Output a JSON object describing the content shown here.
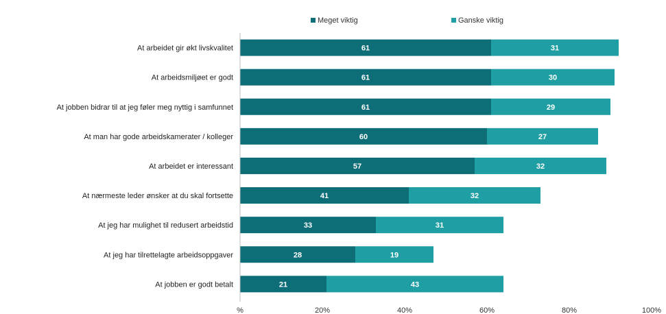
{
  "chart_data": {
    "type": "bar",
    "orientation": "horizontal",
    "stacked": true,
    "categories": [
      "At arbeidet gir økt livskvalitet",
      "At arbeidsmiljøet er godt",
      "At jobben bidrar til at jeg føler meg nyttig i samfunnet",
      "At man har gode arbeidskamerater / kolleger",
      "At arbeidet er interessant",
      "At nærmeste leder ønsker at du skal fortsette",
      "At jeg har mulighet til redusert arbeidstid",
      "At jeg har tilrettelagte arbeidsoppgaver",
      "At jobben er godt betalt"
    ],
    "series": [
      {
        "name": "Meget viktig",
        "color": "#0e6e78",
        "values": [
          61,
          61,
          61,
          60,
          57,
          41,
          33,
          28,
          21
        ]
      },
      {
        "name": "Ganske viktig",
        "color": "#1f9fa3",
        "values": [
          31,
          30,
          29,
          27,
          32,
          32,
          31,
          19,
          43
        ]
      }
    ],
    "xlim": [
      0,
      100
    ],
    "xticks": [
      "%",
      "20%",
      "40%",
      "60%",
      "80%",
      "100%"
    ],
    "xtick_values": [
      0,
      20,
      40,
      60,
      80,
      100
    ],
    "grid": false,
    "legend_position": "top"
  }
}
